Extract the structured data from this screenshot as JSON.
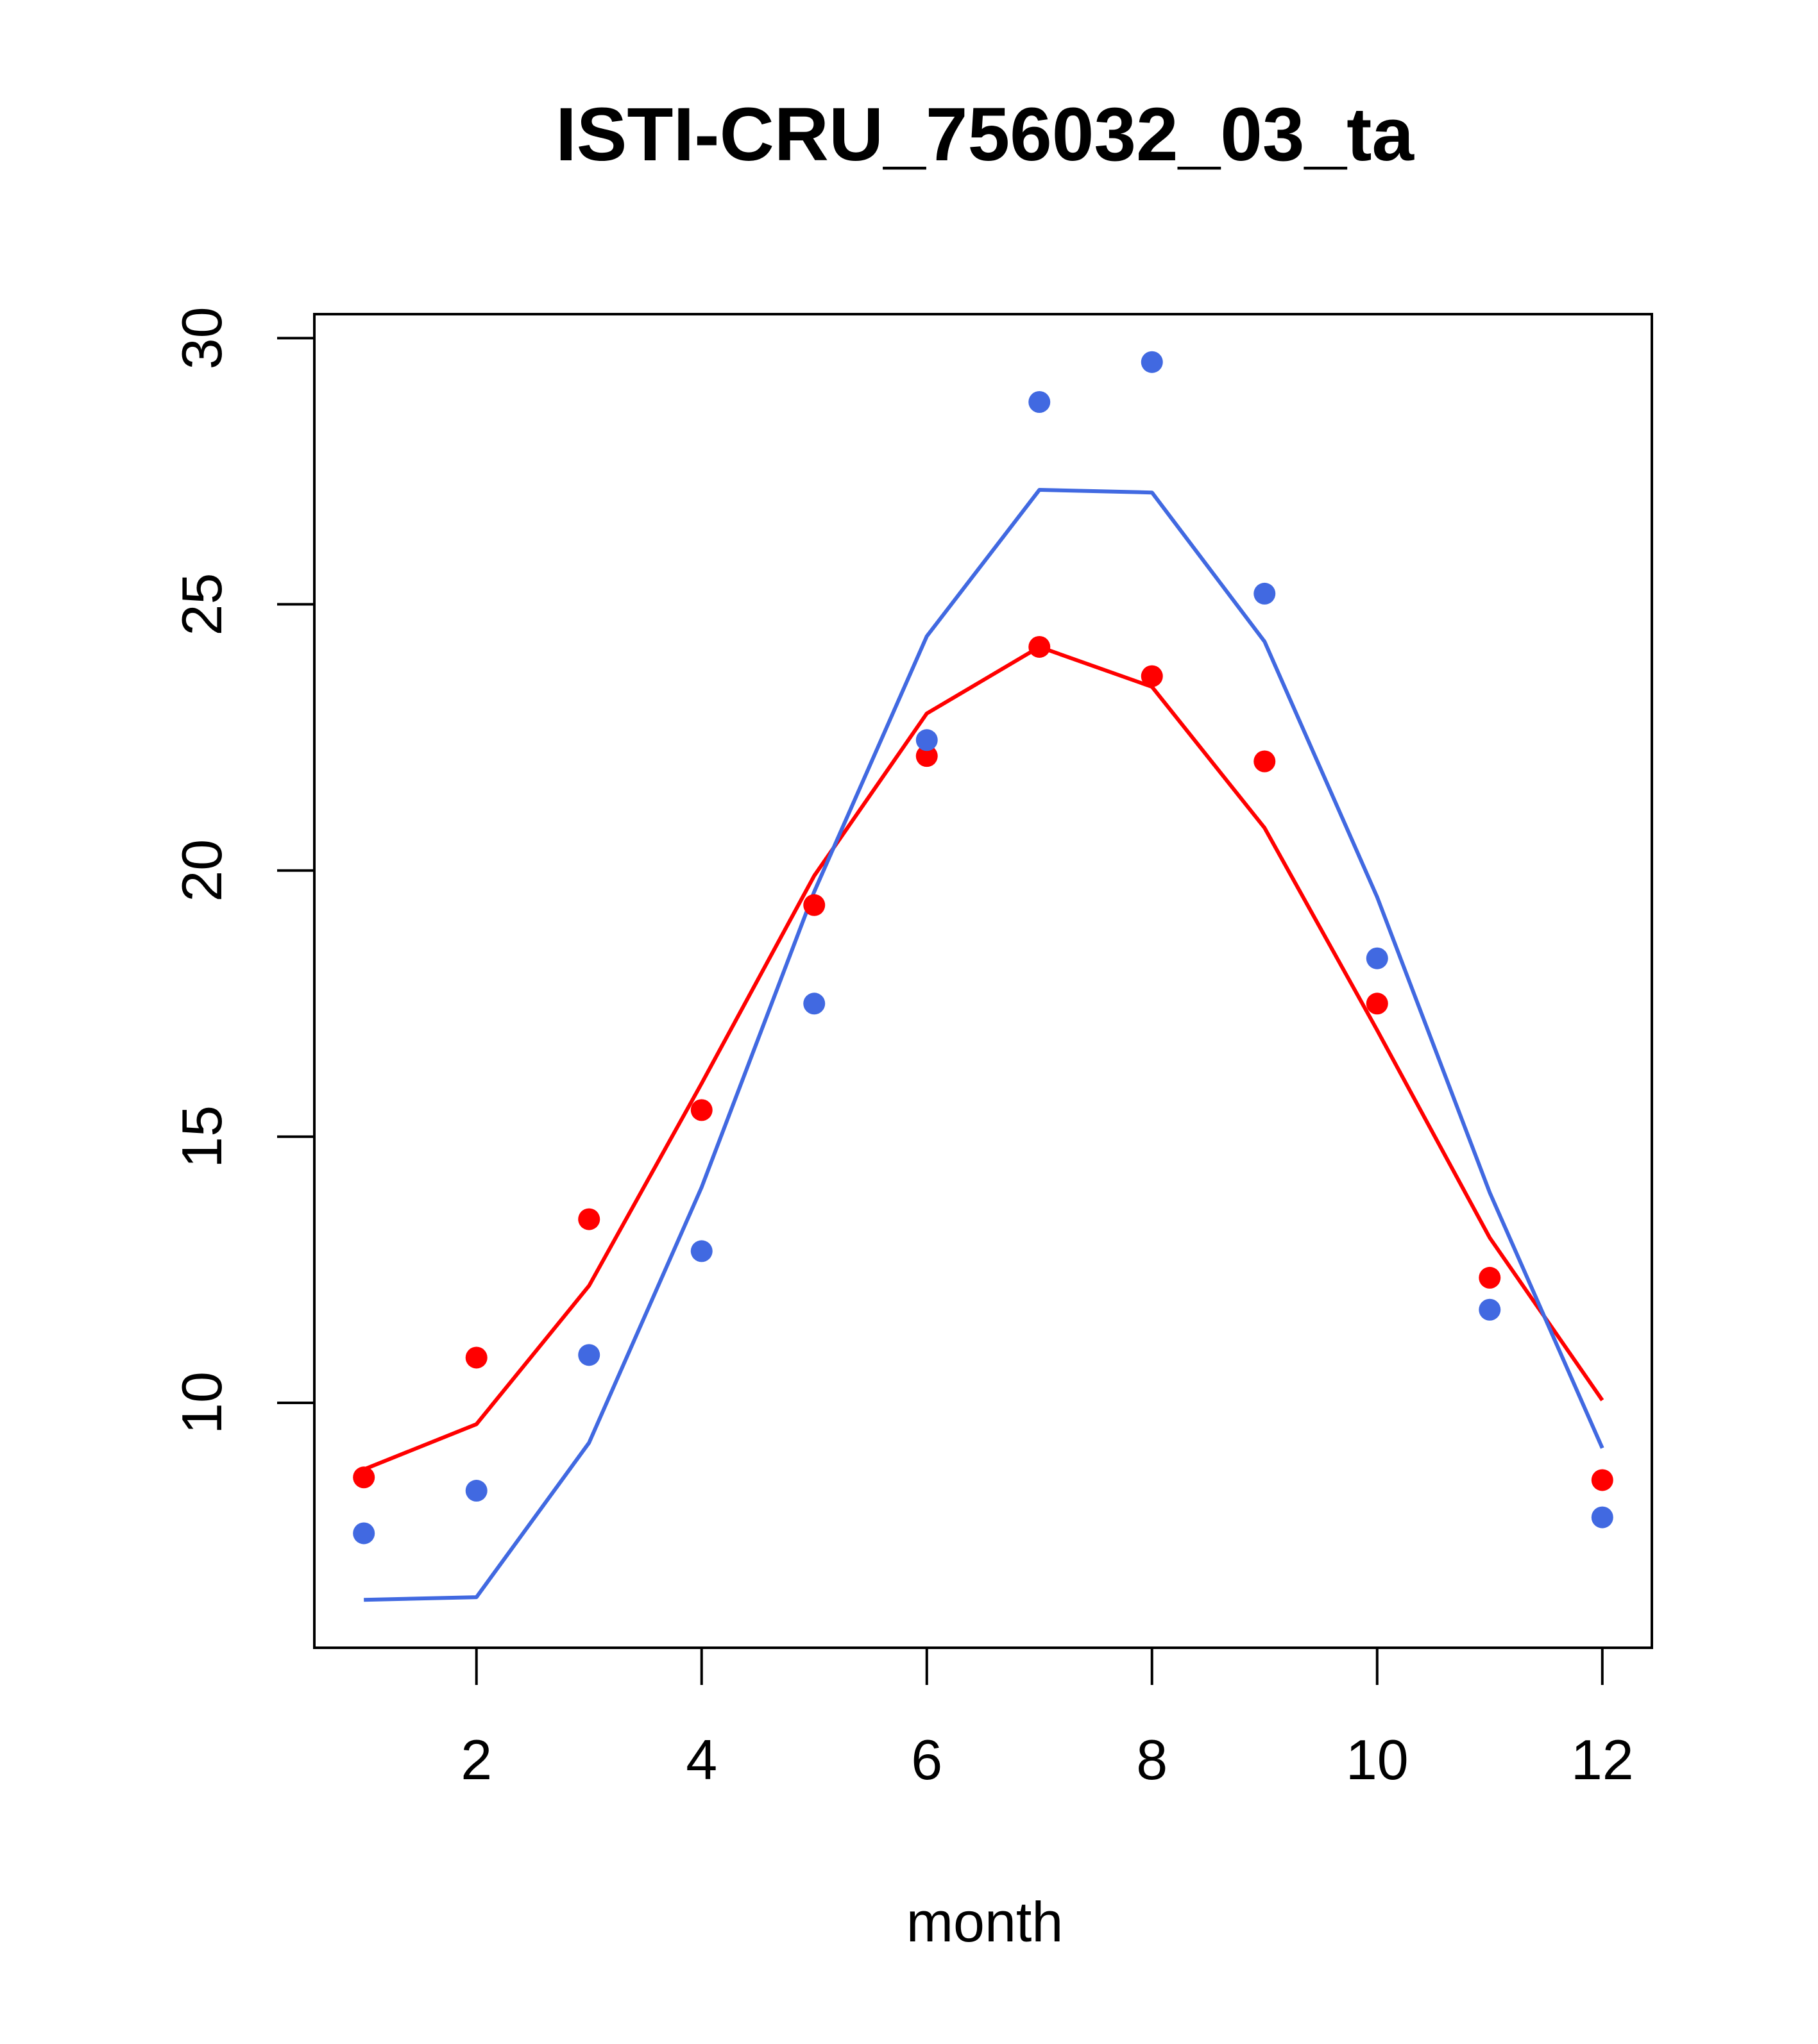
{
  "chart_data": {
    "type": "line",
    "title": "ISTI-CRU_756032_03_ta",
    "xlabel": "month",
    "ylabel": "",
    "x": [
      1,
      2,
      3,
      4,
      5,
      6,
      7,
      8,
      9,
      10,
      11,
      12
    ],
    "xlim": [
      0.56,
      12.44
    ],
    "ylim": [
      5.4,
      30.45
    ],
    "xticks": [
      2,
      4,
      6,
      8,
      10,
      12
    ],
    "yticks": [
      10,
      15,
      20,
      25,
      30
    ],
    "grid": false,
    "legend": "none",
    "series": [
      {
        "color": "#ff0000",
        "line": [
          8.75,
          9.6,
          12.2,
          16.0,
          19.9,
          22.95,
          24.2,
          23.45,
          20.8,
          17.0,
          13.1,
          10.05
        ],
        "points": [
          8.6,
          10.85,
          13.45,
          15.5,
          19.35,
          22.15,
          24.2,
          23.65,
          22.05,
          17.5,
          12.35,
          8.55
        ]
      },
      {
        "color": "#4169e1",
        "line": [
          6.3,
          6.35,
          9.25,
          14.05,
          19.6,
          24.4,
          27.15,
          27.1,
          24.3,
          19.5,
          13.95,
          9.15
        ],
        "points": [
          7.55,
          8.35,
          10.9,
          12.85,
          17.5,
          22.45,
          28.8,
          29.55,
          25.2,
          18.35,
          11.75,
          7.85
        ]
      }
    ]
  }
}
